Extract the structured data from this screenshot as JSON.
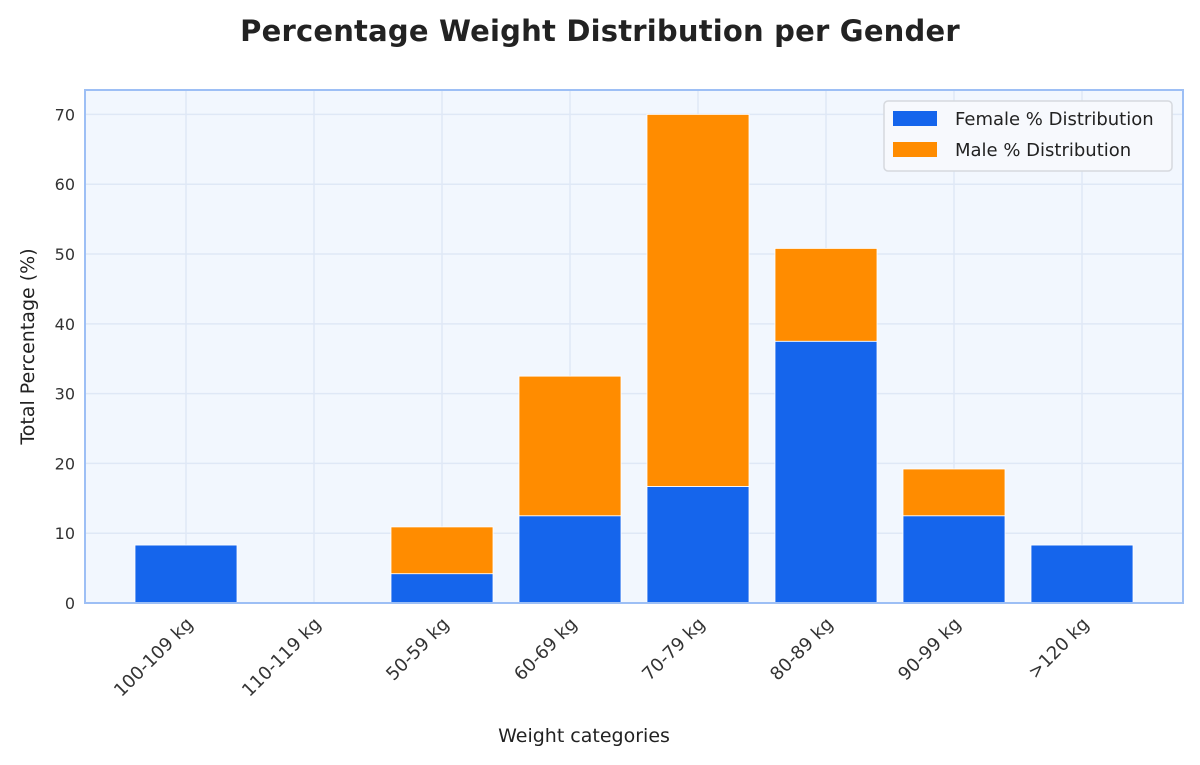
{
  "chart_data": {
    "type": "bar",
    "stacked": true,
    "title": "Percentage Weight Distribution per Gender",
    "xlabel": "Weight categories",
    "ylabel": "Total Percentage (%)",
    "categories": [
      "100-109 kg",
      "110-119 kg",
      "50-59 kg",
      "60-69 kg",
      "70-79 kg",
      "80-89 kg",
      "90-99 kg",
      ">120 kg"
    ],
    "series": [
      {
        "name": "Female % Distribution",
        "color": "#1565ec",
        "values": [
          8.3,
          0,
          4.2,
          12.5,
          16.7,
          37.5,
          12.5,
          8.3
        ]
      },
      {
        "name": "Male % Distribution",
        "color": "#ff8c00",
        "values": [
          0,
          0,
          6.7,
          20.0,
          53.3,
          13.3,
          6.7,
          0
        ]
      }
    ],
    "ylim": [
      0,
      73.5
    ],
    "yticks": [
      0,
      10,
      20,
      30,
      40,
      50,
      60,
      70
    ],
    "grid": true,
    "legend_position": "top-right",
    "plot_background": "#f2f7fe",
    "frame_color": "#9dbff5"
  }
}
